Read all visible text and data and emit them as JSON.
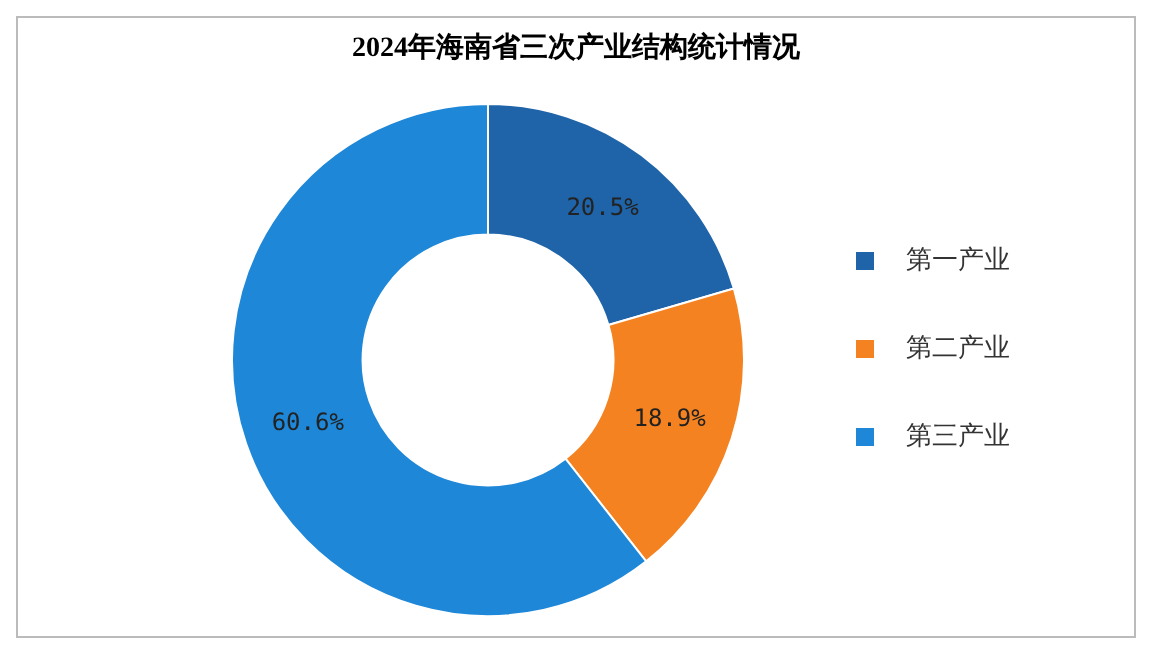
{
  "chart_data": {
    "type": "donut",
    "title": "2024年海南省三次产业结构统计情况",
    "categories": [
      "第一产业",
      "第二产业",
      "第三产业"
    ],
    "values": [
      20.5,
      18.9,
      60.6
    ],
    "colors": [
      "#1f64a8",
      "#f58220",
      "#1e87d8"
    ],
    "value_labels": [
      "20.5%",
      "18.9%",
      "60.6%"
    ],
    "legend": "right"
  }
}
